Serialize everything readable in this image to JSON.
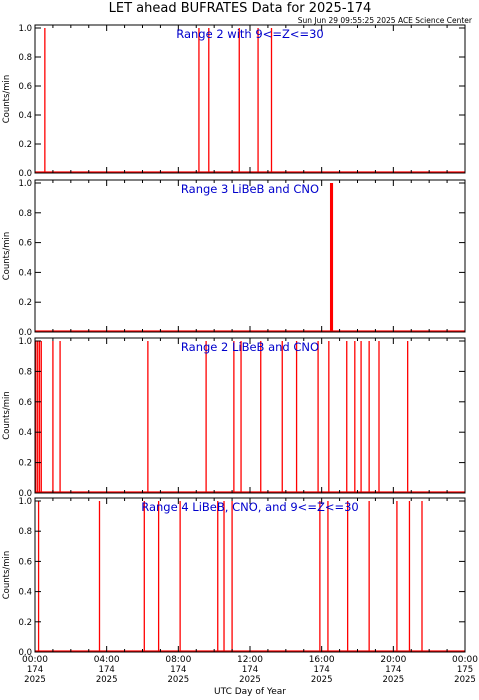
{
  "figure": {
    "title": "LET ahead BUFRATES Data for 2025-174",
    "timestamp": "Sun Jun 29 09:55:25 2025 ACE Science Center",
    "xlabel": "UTC Day of Year"
  },
  "colors": {
    "data": "#ff0000",
    "label": "#0000cc",
    "axis": "#000000"
  },
  "chart_data": [
    {
      "type": "line",
      "title": "Range 2 with 9<=Z<=30",
      "ylabel": "Counts/min",
      "ylim": [
        0,
        1.0
      ],
      "xlim_hours": [
        0,
        24
      ],
      "series": [
        {
          "spike_hours": [
            0.55,
            9.15,
            9.7,
            11.4,
            12.45,
            13.2
          ]
        }
      ]
    },
    {
      "type": "line",
      "title": "Range 3 LiBeB and CNO",
      "ylabel": "Counts/min",
      "ylim": [
        0,
        1.0
      ],
      "xlim_hours": [
        0,
        24
      ],
      "series": [
        {
          "spike_hours": [
            16.5,
            16.55,
            16.6
          ]
        }
      ]
    },
    {
      "type": "line",
      "title": "Range 2 LiBeB and CNO",
      "ylabel": "Counts/min",
      "ylim": [
        0,
        1.0
      ],
      "xlim_hours": [
        0,
        24
      ],
      "series": [
        {
          "spike_hours": [
            0.05,
            0.15,
            0.25,
            0.35,
            1.0,
            1.4,
            6.3,
            9.55,
            11.1,
            11.5,
            12.6,
            13.8,
            14.6,
            15.8,
            16.4,
            17.4,
            17.85,
            18.2,
            18.65,
            19.2,
            20.8
          ]
        }
      ]
    },
    {
      "type": "line",
      "title": "Range 4 LiBeB, CNO, and 9<=Z<=30",
      "ylabel": "Counts/min",
      "ylim": [
        0,
        1.0
      ],
      "xlim_hours": [
        0,
        24
      ],
      "series": [
        {
          "spike_hours": [
            0.2,
            3.6,
            6.1,
            6.9,
            8.1,
            10.2,
            10.55,
            11.0,
            15.9,
            16.35,
            17.45,
            18.65,
            20.2,
            20.9,
            21.6
          ]
        }
      ]
    }
  ],
  "yticks": [
    "0.0",
    "0.2",
    "0.4",
    "0.6",
    "0.8",
    "1.0"
  ],
  "xticks": [
    {
      "time": "00:00",
      "doy": "174",
      "year": "2025",
      "hour": 0
    },
    {
      "time": "04:00",
      "doy": "174",
      "year": "2025",
      "hour": 4
    },
    {
      "time": "08:00",
      "doy": "174",
      "year": "2025",
      "hour": 8
    },
    {
      "time": "12:00",
      "doy": "174",
      "year": "2025",
      "hour": 12
    },
    {
      "time": "16:00",
      "doy": "174",
      "year": "2025",
      "hour": 16
    },
    {
      "time": "20:00",
      "doy": "174",
      "year": "2025",
      "hour": 20
    },
    {
      "time": "00:00",
      "doy": "175",
      "year": "2025",
      "hour": 24
    }
  ]
}
